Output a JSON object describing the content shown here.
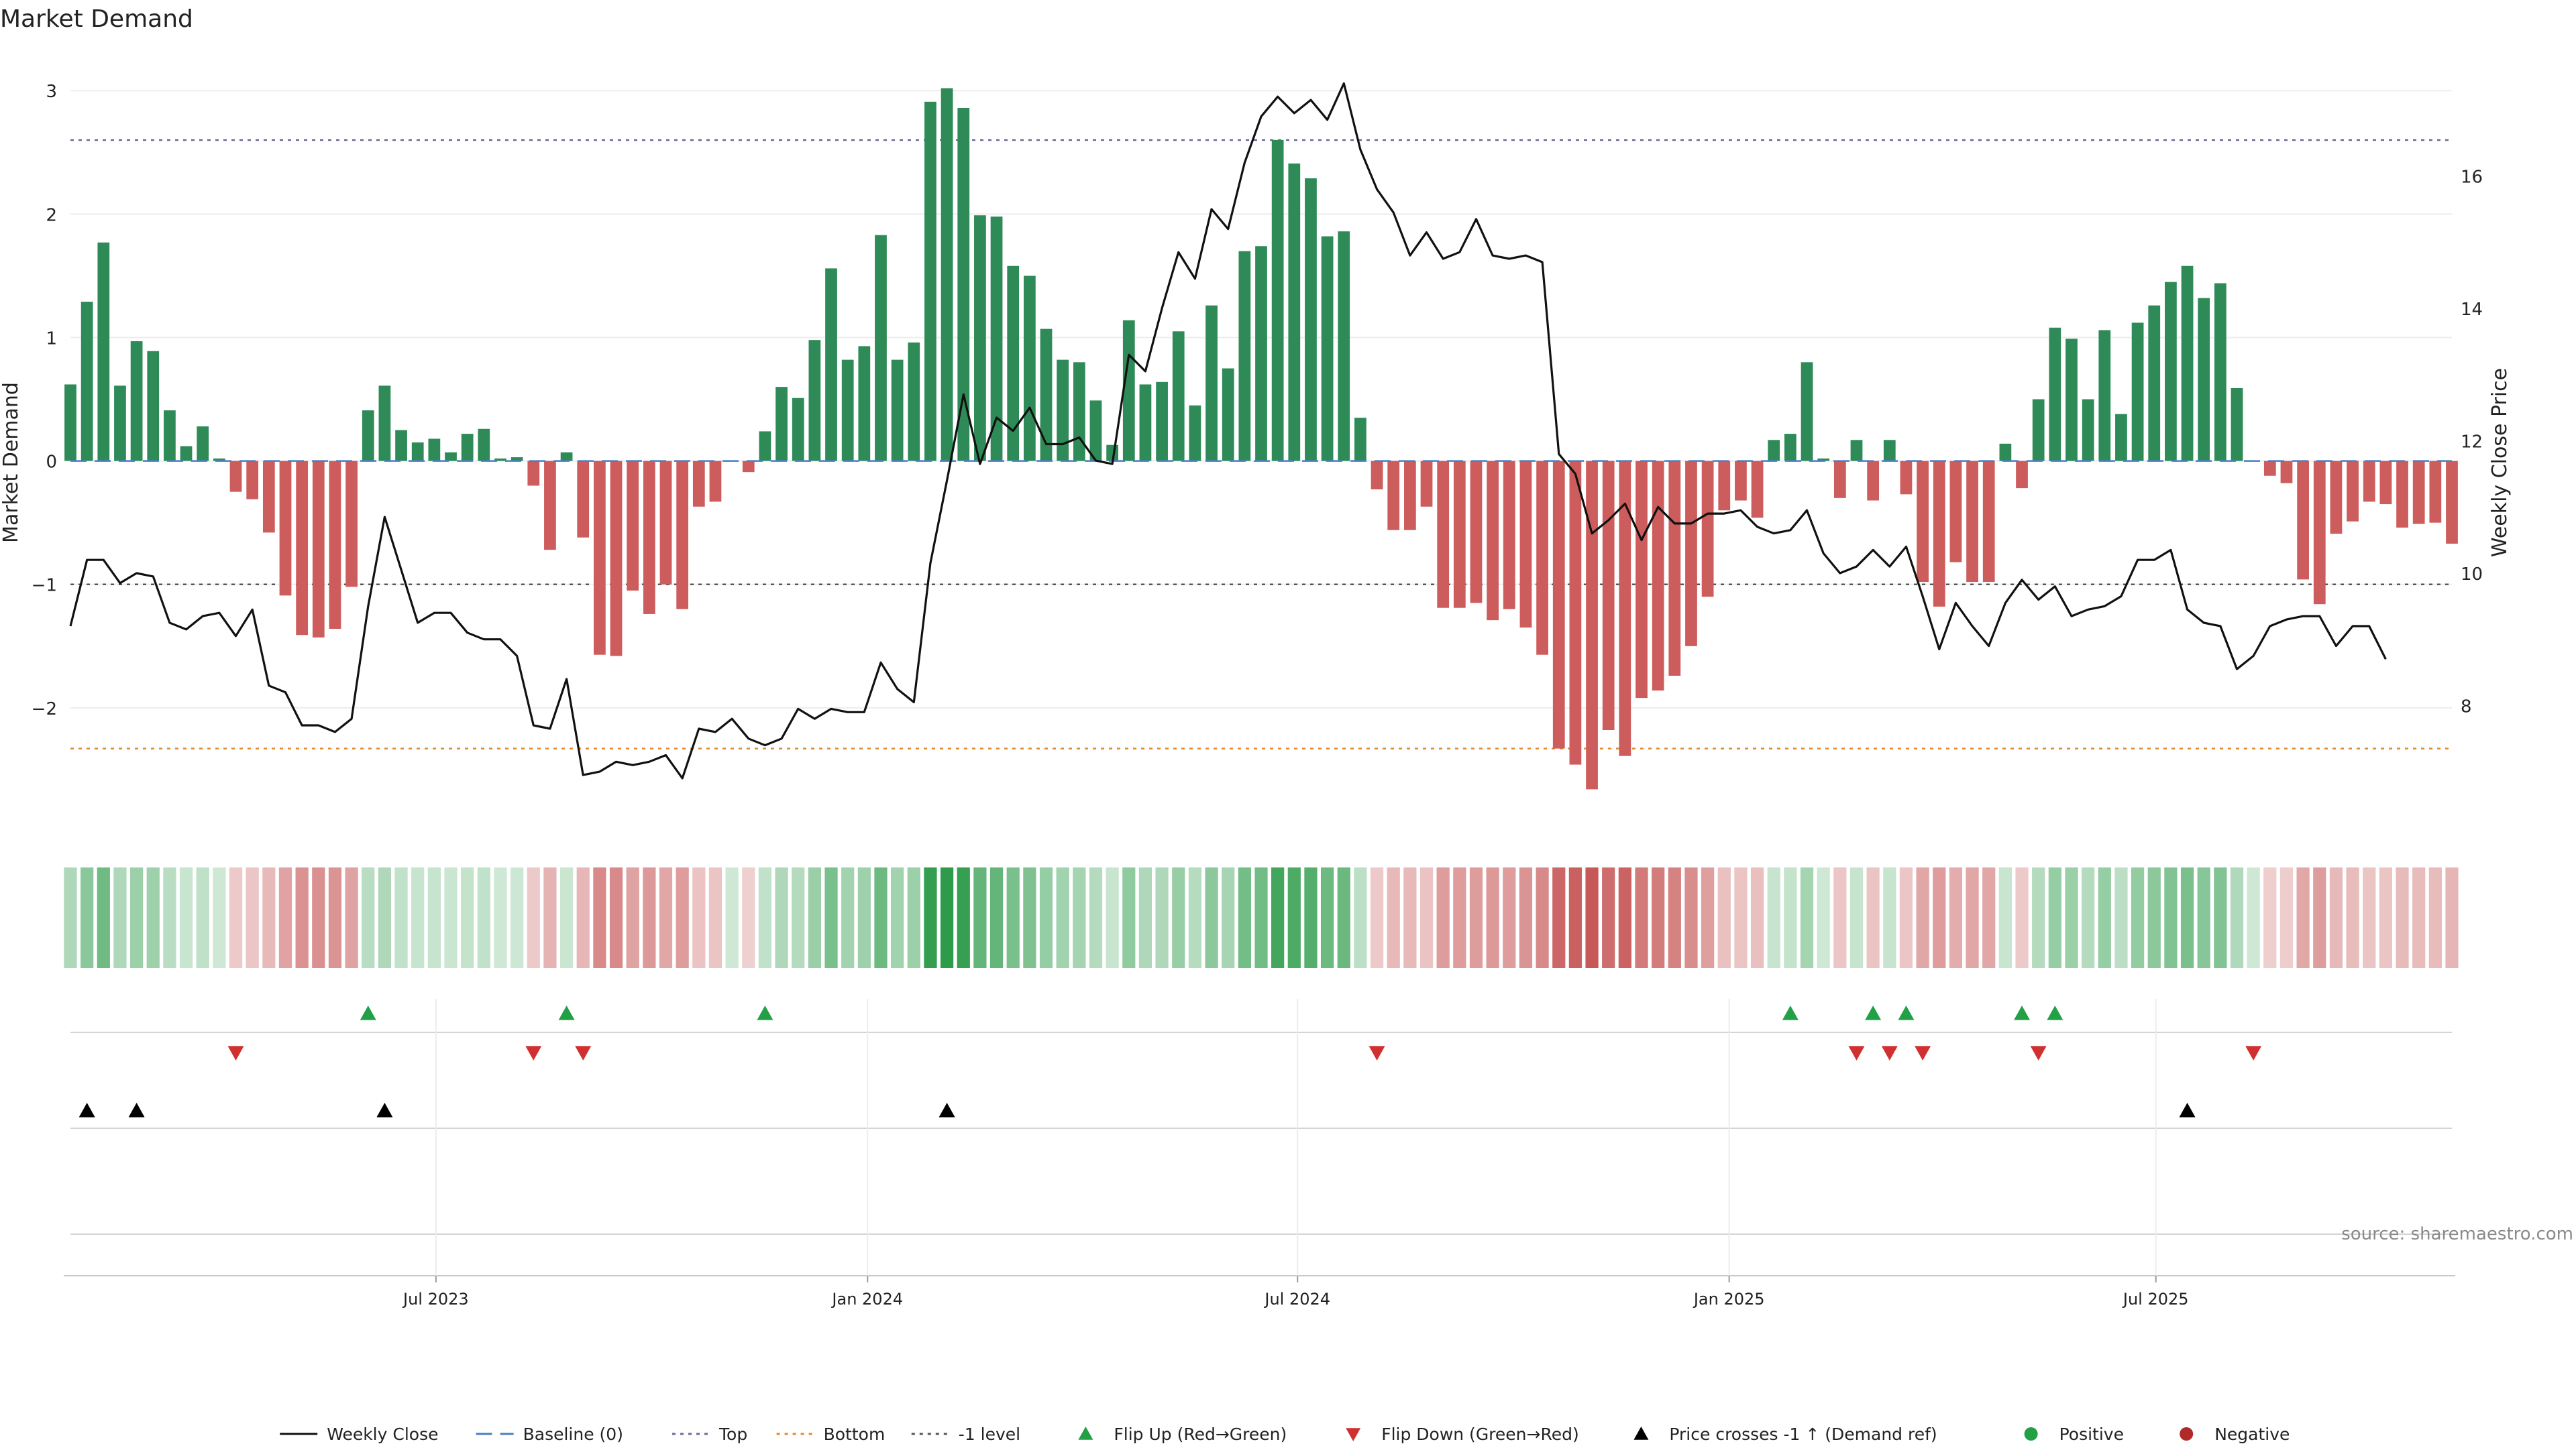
{
  "title": "Market Demand",
  "source": "source: sharemaestro.com",
  "colors": {
    "positive": "#2e8b57",
    "negative": "#cd5c5c",
    "price": "#111111",
    "baseline": "#4a7fc1",
    "top": "#6b6b9a",
    "bottom": "#e08a2b",
    "minus1": "#555555",
    "flip_up": "#22a045",
    "flip_down": "#d03030",
    "cross": "#000000"
  },
  "legend": [
    {
      "label": "Weekly Close",
      "kind": "line",
      "color": "#111111",
      "dash": ""
    },
    {
      "label": "Baseline (0)",
      "kind": "line",
      "color": "#4a7fc1",
      "dash": "24 12"
    },
    {
      "label": "Top",
      "kind": "line",
      "color": "#6b6b9a",
      "dash": "5 7"
    },
    {
      "label": "Bottom",
      "kind": "line",
      "color": "#e08a2b",
      "dash": "5 7"
    },
    {
      "label": "-1 level",
      "kind": "line",
      "color": "#555555",
      "dash": "5 7"
    },
    {
      "label": "Flip Up (Red→Green)",
      "kind": "tri-up",
      "color": "#22a045"
    },
    {
      "label": "Flip Down (Green→Red)",
      "kind": "tri-down",
      "color": "#d03030"
    },
    {
      "label": "Price crosses -1 ↑ (Demand ref)",
      "kind": "tri-up",
      "color": "#000000"
    },
    {
      "label": "Positive",
      "kind": "dot",
      "color": "#22a045"
    },
    {
      "label": "Negative",
      "kind": "dot",
      "color": "#b02a2a"
    }
  ],
  "chart_data": {
    "type": "bar",
    "title": "Market Demand",
    "ylabel": "Market Demand",
    "y2label": "Weekly Close Price",
    "ylim": [
      -3.0,
      3.3
    ],
    "y2lim": [
      6.1,
      17.85
    ],
    "yticks": [
      3,
      2,
      1,
      0,
      -1,
      -2
    ],
    "ytick_labels": [
      "3",
      "2",
      "1",
      "0",
      "−1",
      "−2"
    ],
    "y2ticks": [
      16,
      14,
      12,
      10,
      8
    ],
    "y2tick_labels": [
      "16",
      "14",
      "12",
      "10",
      "8"
    ],
    "x_range": [
      0,
      144
    ],
    "x_ticks": [
      22.1,
      48.2,
      74.2,
      100.3,
      126.1
    ],
    "x_tick_labels": [
      "Jul 2023",
      "Jan 2024",
      "Jul 2024",
      "Jan 2025",
      "Jul 2025"
    ],
    "levels": {
      "baseline": 0,
      "top": 2.6,
      "bottom": -2.33,
      "minus1": -1
    },
    "demand": [
      0.62,
      1.29,
      1.77,
      0.61,
      0.97,
      0.89,
      0.41,
      0.12,
      0.28,
      0.02,
      -0.25,
      -0.31,
      -0.58,
      -1.09,
      -1.41,
      -1.43,
      -1.36,
      -1.02,
      0.41,
      0.61,
      0.25,
      0.15,
      0.18,
      0.07,
      0.22,
      0.26,
      0.02,
      0.03,
      -0.2,
      -0.72,
      0.07,
      -0.62,
      -1.57,
      -1.58,
      -1.05,
      -1.24,
      -1.0,
      -1.2,
      -0.37,
      -0.33,
      0.0,
      -0.09,
      0.24,
      0.6,
      0.51,
      0.98,
      1.56,
      0.82,
      0.93,
      1.83,
      0.82,
      0.96,
      2.91,
      3.02,
      2.86,
      1.99,
      1.98,
      1.58,
      1.5,
      1.07,
      0.82,
      0.8,
      0.49,
      0.13,
      1.14,
      0.62,
      0.64,
      1.05,
      0.45,
      1.26,
      0.75,
      1.7,
      1.74,
      2.6,
      2.41,
      2.29,
      1.82,
      1.86,
      0.35,
      -0.23,
      -0.56,
      -0.56,
      -0.37,
      -1.19,
      -1.19,
      -1.15,
      -1.29,
      -1.2,
      -1.35,
      -1.57,
      -2.33,
      -2.46,
      -2.66,
      -2.18,
      -2.39,
      -1.92,
      -1.86,
      -1.74,
      -1.5,
      -1.1,
      -0.4,
      -0.32,
      -0.46,
      0.17,
      0.22,
      0.8,
      0.02,
      -0.3,
      0.17,
      -0.32,
      0.17,
      -0.27,
      -0.98,
      -1.18,
      -0.82,
      -0.98,
      -0.98,
      0.14,
      -0.22,
      0.5,
      1.08,
      0.99,
      0.5,
      1.06,
      0.38,
      1.12,
      1.26,
      1.45,
      1.58,
      1.32,
      1.44,
      0.59,
      0.0,
      -0.12,
      -0.18,
      -0.96,
      -1.16,
      -0.59,
      -0.49,
      -0.33,
      -0.35,
      -0.54,
      -0.51,
      -0.5,
      -0.67
    ],
    "price": [
      9.2,
      10.2,
      10.2,
      9.85,
      10.0,
      9.95,
      9.25,
      9.15,
      9.35,
      9.4,
      9.05,
      9.45,
      8.3,
      8.2,
      7.7,
      7.7,
      7.6,
      7.8,
      9.5,
      10.85,
      10.05,
      9.25,
      9.4,
      9.4,
      9.1,
      9.0,
      9.0,
      8.75,
      7.7,
      7.65,
      8.4,
      6.95,
      7.0,
      7.15,
      7.1,
      7.15,
      7.25,
      6.9,
      7.65,
      7.6,
      7.8,
      7.5,
      7.4,
      7.5,
      7.95,
      7.8,
      7.95,
      7.9,
      7.9,
      8.65,
      8.25,
      8.05,
      10.15,
      11.4,
      12.7,
      11.65,
      12.35,
      12.15,
      12.5,
      11.95,
      11.95,
      12.05,
      11.7,
      11.65,
      13.3,
      13.05,
      14.0,
      14.85,
      14.45,
      15.5,
      15.2,
      16.2,
      16.9,
      17.2,
      16.95,
      17.15,
      16.85,
      17.4,
      16.4,
      15.8,
      15.45,
      14.8,
      15.15,
      14.75,
      14.85,
      15.35,
      14.8,
      14.75,
      14.8,
      14.7,
      11.8,
      11.5,
      10.6,
      10.8,
      11.05,
      10.5,
      11.0,
      10.75,
      10.75,
      10.9,
      10.9,
      10.95,
      10.7,
      10.6,
      10.65,
      10.95,
      10.3,
      10.0,
      10.1,
      10.35,
      10.1,
      10.4,
      9.65,
      8.85,
      9.55,
      9.2,
      8.9,
      9.55,
      9.9,
      9.6,
      9.8,
      9.35,
      9.45,
      9.5,
      9.65,
      10.2,
      10.2,
      10.35,
      9.45,
      9.25,
      9.2,
      8.55,
      8.75,
      9.2,
      9.3,
      9.35,
      9.35,
      8.9,
      9.2,
      9.2,
      8.7
    ],
    "flip_up": [
      18,
      30,
      42,
      104,
      109,
      111,
      118,
      120
    ],
    "flip_down": [
      10,
      28,
      31,
      79,
      108,
      110,
      112,
      119,
      132
    ],
    "price_cross_up": [
      1,
      4,
      19,
      53,
      128
    ]
  }
}
